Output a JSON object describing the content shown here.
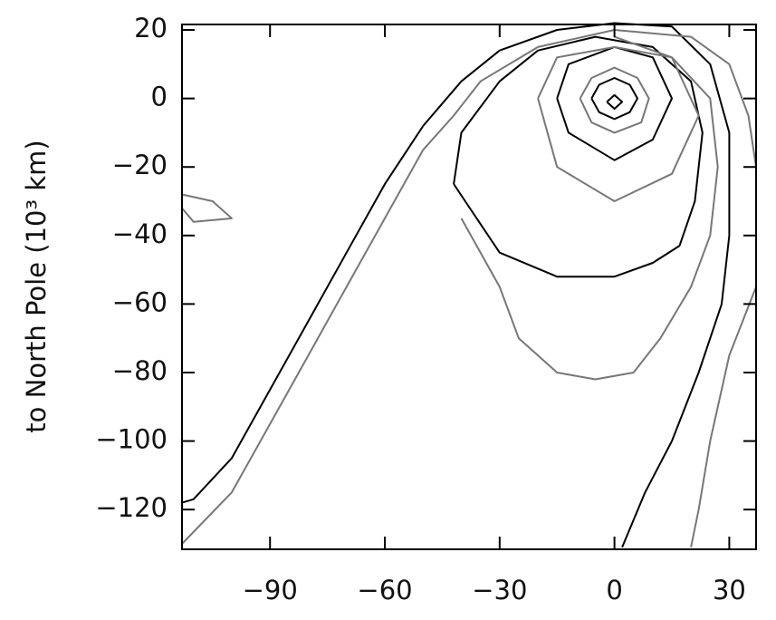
{
  "chart_data": {
    "type": "contour",
    "ylabel": "to North Pole (10³ km)",
    "xlim": [
      -113,
      37
    ],
    "ylim": [
      -131.6,
      21.6
    ],
    "xticks": [
      {
        "value": -90,
        "label": "−90"
      },
      {
        "value": -60,
        "label": "−60"
      },
      {
        "value": -30,
        "label": "−30"
      },
      0,
      30
    ],
    "yticks": [
      20,
      0,
      {
        "value": -20,
        "label": "−20"
      },
      {
        "value": -40,
        "label": "−40"
      },
      {
        "value": -60,
        "label": "−60"
      },
      {
        "value": -80,
        "label": "−80"
      },
      {
        "value": -100,
        "label": "−100"
      },
      {
        "value": -120,
        "label": "−120"
      }
    ],
    "series": [
      {
        "color": "#000000",
        "x": [
          -113,
          -110,
          -100,
          -90,
          -80,
          -70,
          -60,
          -50,
          -40,
          -30,
          -15,
          0,
          15,
          25,
          30,
          30,
          28,
          22,
          15,
          8,
          2
        ],
        "y": [
          -118,
          -117,
          -105,
          -85,
          -65,
          -45,
          -25,
          -8,
          5,
          14,
          20,
          22,
          21,
          10,
          -10,
          -40,
          -60,
          -80,
          -100,
          -115,
          -131
        ]
      },
      {
        "color": "#000000",
        "x": [
          -42,
          -30,
          -15,
          0,
          10,
          17,
          21,
          23,
          20,
          10,
          -5,
          -20,
          -30,
          -40,
          -42
        ],
        "y": [
          -25,
          -45,
          -52,
          -52,
          -48,
          -43,
          -30,
          -10,
          5,
          15,
          18,
          14,
          5,
          -10,
          -25
        ]
      },
      {
        "color": "#000000",
        "x": [
          -15,
          -12,
          0,
          10,
          15,
          10,
          0,
          -12,
          -15
        ],
        "y": [
          0,
          -10,
          -18,
          -12,
          0,
          12,
          15,
          10,
          0
        ]
      },
      {
        "color": "#000000",
        "x": [
          -6,
          -4,
          0,
          4,
          6,
          4,
          0,
          -4,
          -6
        ],
        "y": [
          0,
          -4,
          -6,
          -4,
          0,
          4,
          6,
          4,
          0
        ]
      },
      {
        "color": "#000000",
        "x": [
          -2,
          0,
          2,
          0,
          -2
        ],
        "y": [
          -1,
          -3,
          -1,
          1,
          -1
        ]
      },
      {
        "color": "#777777",
        "x": [
          -113,
          -100,
          -90,
          -80,
          -70,
          -60,
          -50,
          -42,
          -35,
          -20,
          0,
          20,
          30,
          35,
          37
        ],
        "y": [
          -130,
          -115,
          -95,
          -75,
          -55,
          -35,
          -15,
          -5,
          5,
          15,
          20,
          18,
          10,
          -5,
          -20
        ]
      },
      {
        "color": "#777777",
        "x": [
          -40,
          -30,
          -25,
          -15,
          -5,
          5,
          12,
          20,
          25,
          27,
          25,
          15,
          0
        ],
        "y": [
          -35,
          -55,
          -70,
          -80,
          -82,
          -80,
          -70,
          -55,
          -40,
          -20,
          0,
          12,
          18
        ]
      },
      {
        "color": "#777777",
        "x": [
          -20,
          -15,
          0,
          15,
          22,
          15,
          0,
          -15,
          -20
        ],
        "y": [
          0,
          -20,
          -30,
          -22,
          -5,
          12,
          15,
          12,
          0
        ]
      },
      {
        "color": "#777777",
        "x": [
          -9,
          -6,
          0,
          7,
          9,
          6,
          0,
          -6,
          -9
        ],
        "y": [
          0,
          -7,
          -10,
          -7,
          0,
          6,
          9,
          6,
          0
        ]
      },
      {
        "color": "#777777",
        "x": [
          37,
          30,
          25,
          22,
          20
        ],
        "y": [
          -55,
          -75,
          -100,
          -120,
          -131
        ]
      },
      {
        "color": "#777777",
        "x": [
          -113,
          -105,
          -100,
          -110,
          -113
        ],
        "y": [
          -28,
          -30,
          -35,
          -36,
          -32
        ]
      }
    ]
  }
}
